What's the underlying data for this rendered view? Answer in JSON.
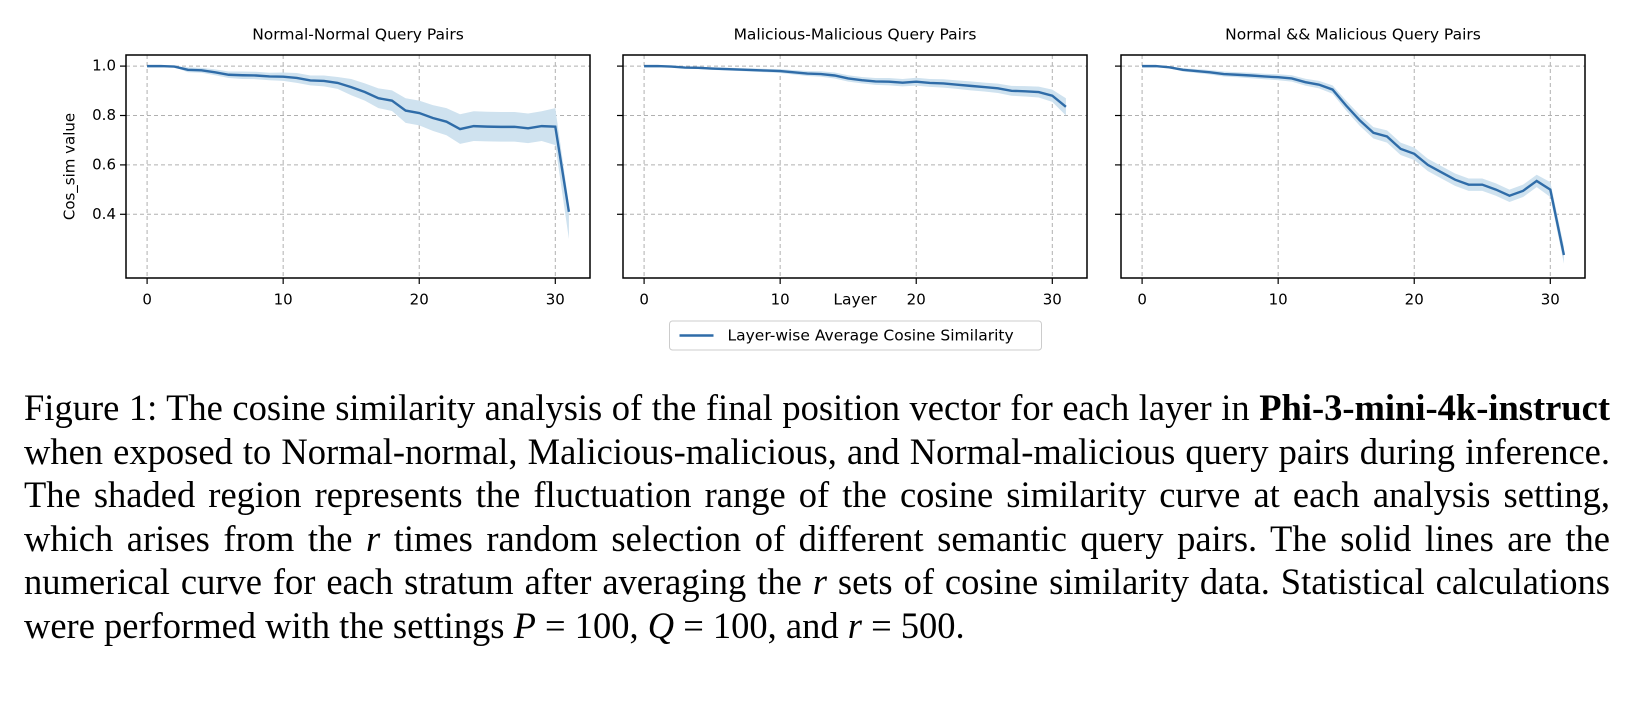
{
  "chart_data": [
    {
      "type": "line",
      "title": "Normal-Normal Query Pairs",
      "ylabel": "Cos_sim value",
      "x": [
        0,
        1,
        2,
        3,
        4,
        5,
        6,
        7,
        8,
        9,
        10,
        11,
        12,
        13,
        14,
        15,
        16,
        17,
        18,
        19,
        20,
        21,
        22,
        23,
        24,
        25,
        26,
        27,
        28,
        29,
        30,
        31
      ],
      "series": [
        {
          "color": "#2f6ca8",
          "band_color": "#cfe2ef",
          "values": [
            1.0,
            1.0,
            0.998,
            0.985,
            0.983,
            0.975,
            0.965,
            0.963,
            0.962,
            0.958,
            0.957,
            0.952,
            0.942,
            0.94,
            0.932,
            0.915,
            0.895,
            0.87,
            0.86,
            0.82,
            0.81,
            0.79,
            0.775,
            0.745,
            0.757,
            0.755,
            0.754,
            0.754,
            0.748,
            0.757,
            0.755,
            0.41
          ],
          "lower": [
            1.0,
            1.0,
            0.996,
            0.975,
            0.973,
            0.963,
            0.952,
            0.948,
            0.947,
            0.943,
            0.94,
            0.932,
            0.922,
            0.918,
            0.908,
            0.882,
            0.86,
            0.83,
            0.818,
            0.77,
            0.76,
            0.738,
            0.72,
            0.685,
            0.697,
            0.695,
            0.694,
            0.694,
            0.688,
            0.697,
            0.68,
            0.3
          ],
          "upper": [
            1.0,
            1.0,
            1.0,
            0.995,
            0.993,
            0.987,
            0.978,
            0.978,
            0.977,
            0.973,
            0.974,
            0.972,
            0.962,
            0.962,
            0.956,
            0.948,
            0.93,
            0.91,
            0.902,
            0.87,
            0.86,
            0.842,
            0.83,
            0.805,
            0.817,
            0.815,
            0.814,
            0.814,
            0.808,
            0.817,
            0.83,
            0.44
          ]
        }
      ],
      "xlim": [
        -1.55,
        32.55
      ],
      "xticks": [
        0,
        10,
        20,
        30
      ],
      "ylim": [
        0.142,
        1.045
      ],
      "yticks": [
        0.4,
        0.6,
        0.8,
        {
          "value": 1,
          "label": "1.0"
        }
      ],
      "ytick_labels": true,
      "grid": true
    },
    {
      "type": "line",
      "title": "Malicious-Malicious Query Pairs",
      "xlabel": "Layer",
      "legend": "bottom-center",
      "x": [
        0,
        1,
        2,
        3,
        4,
        5,
        6,
        7,
        8,
        9,
        10,
        11,
        12,
        13,
        14,
        15,
        16,
        17,
        18,
        19,
        20,
        21,
        22,
        23,
        24,
        25,
        26,
        27,
        28,
        29,
        30,
        31
      ],
      "series": [
        {
          "name": "Layer-wise Average Cosine Similarity",
          "color": "#2f6ca8",
          "band_color": "#cfe2ef",
          "values": [
            1.0,
            1.0,
            0.998,
            0.994,
            0.993,
            0.99,
            0.988,
            0.986,
            0.984,
            0.982,
            0.98,
            0.975,
            0.97,
            0.968,
            0.962,
            0.95,
            0.943,
            0.938,
            0.937,
            0.933,
            0.937,
            0.932,
            0.93,
            0.925,
            0.92,
            0.915,
            0.91,
            0.9,
            0.898,
            0.895,
            0.88,
            0.835
          ],
          "lower": [
            1.0,
            0.999,
            0.995,
            0.99,
            0.988,
            0.985,
            0.982,
            0.98,
            0.977,
            0.975,
            0.972,
            0.966,
            0.96,
            0.957,
            0.95,
            0.937,
            0.93,
            0.924,
            0.922,
            0.918,
            0.921,
            0.916,
            0.913,
            0.908,
            0.902,
            0.897,
            0.891,
            0.88,
            0.877,
            0.873,
            0.855,
            0.8
          ],
          "upper": [
            1.0,
            1.0,
            1.0,
            0.998,
            0.998,
            0.995,
            0.994,
            0.992,
            0.991,
            0.989,
            0.988,
            0.984,
            0.98,
            0.979,
            0.974,
            0.963,
            0.956,
            0.952,
            0.952,
            0.948,
            0.953,
            0.948,
            0.947,
            0.942,
            0.938,
            0.933,
            0.929,
            0.92,
            0.919,
            0.917,
            0.905,
            0.87
          ]
        }
      ],
      "xlim": [
        -1.55,
        32.55
      ],
      "xticks": [
        0,
        10,
        20,
        30
      ],
      "ylim": [
        0.142,
        1.045
      ],
      "yticks": [
        0.4,
        0.6,
        0.8,
        1
      ],
      "ytick_labels": false,
      "grid": true
    },
    {
      "type": "line",
      "title": "Normal && Malicious Query Pairs",
      "x": [
        0,
        1,
        2,
        3,
        4,
        5,
        6,
        7,
        8,
        9,
        10,
        11,
        12,
        13,
        14,
        15,
        16,
        17,
        18,
        19,
        20,
        21,
        22,
        23,
        24,
        25,
        26,
        27,
        28,
        29,
        30,
        31
      ],
      "series": [
        {
          "color": "#2f6ca8",
          "band_color": "#cfe2ef",
          "values": [
            1.0,
            1.0,
            0.995,
            0.985,
            0.98,
            0.975,
            0.968,
            0.965,
            0.962,
            0.958,
            0.955,
            0.95,
            0.935,
            0.925,
            0.905,
            0.84,
            0.78,
            0.73,
            0.715,
            0.665,
            0.645,
            0.6,
            0.57,
            0.54,
            0.52,
            0.52,
            0.5,
            0.475,
            0.495,
            0.535,
            0.5,
            0.235
          ],
          "lower": [
            1.0,
            1.0,
            0.992,
            0.978,
            0.972,
            0.966,
            0.958,
            0.955,
            0.951,
            0.947,
            0.943,
            0.937,
            0.921,
            0.91,
            0.888,
            0.82,
            0.758,
            0.707,
            0.69,
            0.64,
            0.62,
            0.575,
            0.545,
            0.515,
            0.495,
            0.495,
            0.475,
            0.45,
            0.47,
            0.51,
            0.47,
            0.2
          ],
          "upper": [
            1.0,
            1.0,
            0.998,
            0.992,
            0.988,
            0.984,
            0.978,
            0.975,
            0.973,
            0.969,
            0.967,
            0.963,
            0.949,
            0.94,
            0.922,
            0.86,
            0.802,
            0.753,
            0.74,
            0.69,
            0.67,
            0.625,
            0.595,
            0.565,
            0.545,
            0.545,
            0.525,
            0.5,
            0.52,
            0.56,
            0.53,
            0.27
          ]
        }
      ],
      "xlim": [
        -1.55,
        32.55
      ],
      "xticks": [
        0,
        10,
        20,
        30
      ],
      "ylim": [
        0.142,
        1.045
      ],
      "yticks": [
        0.4,
        0.6,
        0.8,
        1
      ],
      "ytick_labels": false,
      "grid": true
    }
  ],
  "caption": {
    "segments": [
      {
        "text": "Figure 1: The cosine similarity analysis of the final position vector for each layer in ",
        "style": "plain"
      },
      {
        "text": "Phi-3-mini-4k-instruct",
        "style": "bold"
      },
      {
        "text": " when exposed to Normal-normal, Malicious-malicious, and Normal-malicious query pairs during inference. The shaded region represents the fluctuation range of the cosine similarity curve at each analysis setting, which arises from the ",
        "style": "plain"
      },
      {
        "text": "r",
        "style": "math"
      },
      {
        "text": " times random selection of different semantic query pairs. The solid lines are the numerical curve for each stratum after averaging the ",
        "style": "plain"
      },
      {
        "text": "r",
        "style": "math"
      },
      {
        "text": " sets of cosine similarity data. Statistical calculations were performed with the settings ",
        "style": "plain"
      },
      {
        "text": "P",
        "style": "math"
      },
      {
        "text": " = 100, ",
        "style": "plain"
      },
      {
        "text": "Q",
        "style": "math"
      },
      {
        "text": " = 100, and ",
        "style": "plain"
      },
      {
        "text": "r",
        "style": "math"
      },
      {
        "text": " = 500.",
        "style": "plain"
      }
    ]
  }
}
